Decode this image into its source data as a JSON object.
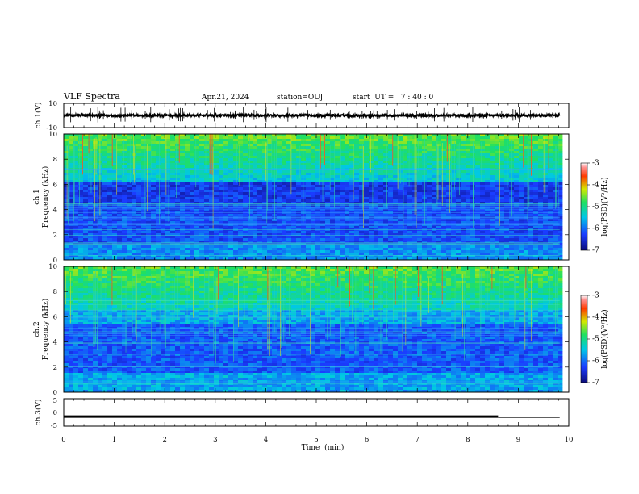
{
  "header": {
    "title": "VLF Spectra",
    "date": "Apr.21, 2024",
    "station": "station=OUJ",
    "start_ut": "start  UT =   7 : 40 : 0"
  },
  "chart_data": [
    {
      "type": "line",
      "name": "ch1-waveform",
      "ylabel": "ch.1(V)",
      "ylim": [
        -10,
        10
      ],
      "yticks": [
        "10",
        "-10"
      ],
      "x_range": [
        0,
        10
      ],
      "x_extent": [
        0,
        9.82
      ],
      "approx_level": 0,
      "approx_amplitude": 1
    },
    {
      "type": "heatmap",
      "name": "ch1-spectrogram",
      "panel_label": "ch.1",
      "ylabel": "Frequency (kHz)",
      "ylim": [
        0,
        10
      ],
      "yticks": [
        "0",
        "2",
        "4",
        "6",
        "8",
        "10"
      ],
      "x_range": [
        0,
        10
      ],
      "colorbar": {
        "label": "log(PSD)(V²/Hz)",
        "range": [
          -7,
          -3
        ],
        "ticks": [
          "-3",
          "-4",
          "-5",
          "-6",
          "-7"
        ]
      }
    },
    {
      "type": "heatmap",
      "name": "ch2-spectrogram",
      "panel_label": "ch.2",
      "ylabel": "Frequency (kHz)",
      "ylim": [
        0,
        10
      ],
      "yticks": [
        "0",
        "2",
        "4",
        "6",
        "8",
        "10"
      ],
      "x_range": [
        0,
        10
      ],
      "colorbar": {
        "label": "log(PSD)(V²/Hz)",
        "range": [
          -7,
          -3
        ],
        "ticks": [
          "-3",
          "-4",
          "-5",
          "-6",
          "-7"
        ]
      }
    },
    {
      "type": "line",
      "name": "ch3-signal",
      "ylabel": "ch.3(V)",
      "ylim": [
        -5,
        5
      ],
      "yticks": [
        "5",
        "0",
        "-5"
      ],
      "x_range": [
        0,
        10
      ],
      "series": [
        {
          "x": [
            0,
            8.6
          ],
          "y": [
            -1.5,
            -1.5
          ]
        },
        {
          "x": [
            8.6,
            9.82
          ],
          "y": [
            -1.7,
            -1.7
          ]
        }
      ]
    }
  ],
  "x_axis": {
    "label": "Time  (min)",
    "ticks": [
      "0",
      "1",
      "2",
      "3",
      "4",
      "5",
      "6",
      "7",
      "8",
      "9",
      "10"
    ]
  }
}
